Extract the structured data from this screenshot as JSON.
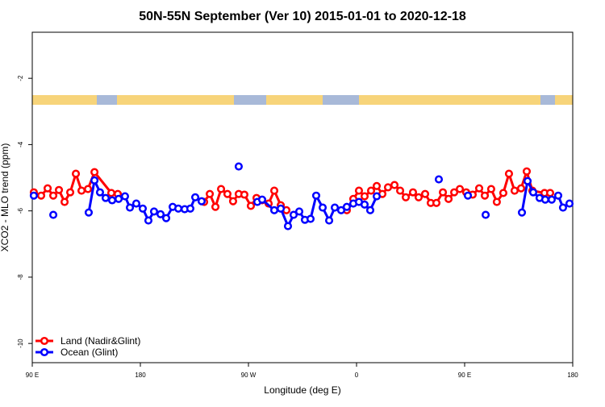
{
  "chart_data": {
    "type": "line",
    "title": "50N-55N September (Ver 10)   2015-01-01 to 2020-12-18",
    "xlabel": "Longitude (deg E)",
    "ylabel": "XCO2 - MLO trend (ppm)",
    "xlim": [
      90,
      540
    ],
    "xticks": [
      {
        "value": 90,
        "label": "90 E"
      },
      180,
      {
        "value": 270,
        "label": "90 W"
      },
      {
        "value": 360,
        "label": "0"
      },
      {
        "value": 450,
        "label": "90 E"
      },
      {
        "value": 540,
        "label": "180"
      }
    ],
    "ylim": [
      -10.58,
      -0.61
    ],
    "yticks": [
      -2,
      -4,
      -6,
      -8,
      -10
    ],
    "legend": "bottom-left",
    "series": [
      {
        "name": "Land (Nadir&Glint)",
        "color": "#ff0000",
        "x": [
          91.3,
          97.4,
          102.8,
          107.5,
          112.2,
          116.9,
          121.6,
          126.3,
          131.0,
          136.4,
          141.8,
          155.8,
          161.2,
          null,
          233.1,
          237.8,
          242.5,
          247.2,
          252.5,
          257.2,
          261.9,
          266.6,
          272.0,
          276.7,
          281.4,
          286.8,
          291.5,
          296.9,
          301.6,
          null,
          351.9,
          357.3,
          362.0,
          366.7,
          372.1,
          376.8,
          381.5,
          386.2,
          391.6,
          396.3,
          401.0,
          407.0,
          411.7,
          417.1,
          421.8,
          426.5,
          431.9,
          436.6,
          441.3,
          446.0,
          451.3,
          456.7,
          462.1,
          466.8,
          472.1,
          476.8,
          482.2,
          486.9,
          491.6,
          497.0,
          501.7,
          506.4,
          516.5,
          521.2
        ],
        "values": [
          -5.44,
          -5.54,
          -5.32,
          -5.54,
          -5.37,
          -5.73,
          -5.44,
          -4.88,
          -5.39,
          -5.34,
          -4.83,
          -5.46,
          -5.49,
          null,
          -5.73,
          -5.49,
          -5.88,
          -5.34,
          -5.49,
          -5.71,
          -5.49,
          -5.51,
          -5.85,
          -5.61,
          -5.68,
          -5.78,
          -5.39,
          -5.83,
          -5.98,
          null,
          -5.98,
          -5.64,
          -5.39,
          -5.56,
          -5.39,
          -5.25,
          -5.49,
          -5.29,
          -5.22,
          -5.39,
          -5.59,
          -5.44,
          -5.59,
          -5.49,
          -5.76,
          -5.76,
          -5.44,
          -5.64,
          -5.44,
          -5.34,
          -5.44,
          -5.51,
          -5.32,
          -5.54,
          -5.34,
          -5.73,
          -5.46,
          -4.88,
          -5.39,
          -5.32,
          -4.81,
          -5.39,
          -5.46,
          -5.46
        ]
      },
      {
        "name": "Ocean (Glint)",
        "color": "#0000ff",
        "x": [
          91.3,
          null,
          107.5,
          null,
          137.0,
          141.8,
          146.4,
          151.1,
          156.5,
          161.9,
          167.2,
          171.3,
          176.6,
          182.0,
          186.7,
          191.4,
          196.8,
          201.5,
          206.9,
          211.6,
          216.9,
          221.6,
          225.7,
          231.0,
          null,
          261.9,
          null,
          277.4,
          281.4,
          291.5,
          296.9,
          302.9,
          307.6,
          312.3,
          317.0,
          321.7,
          326.4,
          331.8,
          337.2,
          341.9,
          347.2,
          351.9,
          357.3,
          362.0,
          366.7,
          371.4,
          376.8,
          null,
          428.5,
          null,
          452.7,
          null,
          467.5,
          null,
          497.7,
          502.4,
          507.1,
          512.4,
          517.1,
          522.5,
          527.9,
          531.9,
          537.3
        ],
        "values": [
          -5.54,
          null,
          -6.12,
          null,
          -6.05,
          -5.08,
          -5.44,
          -5.61,
          -5.68,
          -5.64,
          -5.56,
          -5.9,
          -5.78,
          -5.93,
          -6.29,
          -6.02,
          -6.1,
          -6.22,
          -5.88,
          -5.93,
          -5.95,
          -5.93,
          -5.59,
          -5.71,
          null,
          -4.66,
          null,
          -5.73,
          -5.66,
          -5.98,
          -5.93,
          -6.46,
          -6.12,
          -6.02,
          -6.27,
          -6.24,
          -5.54,
          -5.9,
          -6.29,
          -5.9,
          -5.98,
          -5.88,
          -5.78,
          -5.73,
          -5.81,
          -5.98,
          -5.56,
          null,
          -5.05,
          null,
          -5.54,
          null,
          -6.12,
          null,
          -6.05,
          -5.1,
          -5.44,
          -5.61,
          -5.66,
          -5.66,
          -5.54,
          -5.9,
          -5.78
        ]
      }
    ]
  }
}
